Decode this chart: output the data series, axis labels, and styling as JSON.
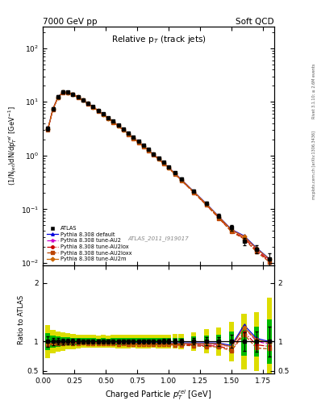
{
  "title_left": "7000 GeV pp",
  "title_right": "Soft QCD",
  "inner_title": "Relative p$_T$ (track jets)",
  "xlabel": "Charged Particle $p_T^{rel}$ [GeV]",
  "ylabel_main": "(1/N$_{jet}$)dN/dp$_T^{rel}$ [GeV$^{-1}$]",
  "ylabel_ratio": "Ratio to ATLAS",
  "right_label_top": "Rivet 3.1.10; ≥ 2.6M events",
  "right_label_bot": "mcplots.cern.ch [arXiv:1306.3436]",
  "watermark": "ATLAS_2011_I919017",
  "atlas_x": [
    0.04,
    0.08,
    0.12,
    0.16,
    0.2,
    0.24,
    0.28,
    0.32,
    0.36,
    0.4,
    0.44,
    0.48,
    0.52,
    0.56,
    0.6,
    0.64,
    0.68,
    0.72,
    0.76,
    0.8,
    0.84,
    0.88,
    0.92,
    0.96,
    1.0,
    1.05,
    1.1,
    1.2,
    1.3,
    1.4,
    1.5,
    1.6,
    1.7,
    1.8
  ],
  "atlas_y": [
    3.2,
    7.5,
    12.5,
    15.5,
    15.2,
    14.0,
    12.5,
    11.0,
    9.5,
    8.2,
    7.0,
    6.0,
    5.1,
    4.35,
    3.7,
    3.1,
    2.6,
    2.2,
    1.85,
    1.55,
    1.3,
    1.08,
    0.9,
    0.75,
    0.62,
    0.48,
    0.37,
    0.22,
    0.13,
    0.075,
    0.045,
    0.025,
    0.018,
    0.012
  ],
  "atlas_yerr": [
    0.3,
    0.5,
    0.7,
    0.8,
    0.7,
    0.6,
    0.5,
    0.4,
    0.35,
    0.3,
    0.25,
    0.22,
    0.18,
    0.16,
    0.14,
    0.12,
    0.1,
    0.08,
    0.07,
    0.06,
    0.05,
    0.04,
    0.035,
    0.03,
    0.025,
    0.02,
    0.016,
    0.012,
    0.009,
    0.006,
    0.005,
    0.004,
    0.003,
    0.003
  ],
  "pythia_default_y": [
    3.1,
    7.3,
    12.2,
    15.2,
    15.0,
    13.8,
    12.3,
    10.8,
    9.3,
    8.05,
    6.88,
    5.88,
    5.0,
    4.27,
    3.62,
    3.04,
    2.55,
    2.15,
    1.81,
    1.52,
    1.27,
    1.06,
    0.88,
    0.73,
    0.605,
    0.468,
    0.361,
    0.215,
    0.127,
    0.073,
    0.042,
    0.032,
    0.019,
    0.012
  ],
  "pythia_au2_y": [
    3.05,
    7.25,
    12.1,
    15.1,
    14.9,
    13.7,
    12.2,
    10.75,
    9.25,
    8.0,
    6.83,
    5.83,
    4.95,
    4.22,
    3.58,
    3.0,
    2.51,
    2.11,
    1.78,
    1.49,
    1.25,
    1.04,
    0.865,
    0.72,
    0.595,
    0.46,
    0.354,
    0.21,
    0.124,
    0.071,
    0.041,
    0.031,
    0.018,
    0.0115
  ],
  "pythia_au2lox_y": [
    3.05,
    7.25,
    12.1,
    15.1,
    14.9,
    13.7,
    12.2,
    10.75,
    9.25,
    8.0,
    6.83,
    5.83,
    4.95,
    4.22,
    3.58,
    3.0,
    2.51,
    2.11,
    1.78,
    1.49,
    1.25,
    1.04,
    0.862,
    0.715,
    0.59,
    0.455,
    0.35,
    0.207,
    0.121,
    0.069,
    0.039,
    0.029,
    0.017,
    0.011
  ],
  "pythia_au2loxx_y": [
    3.02,
    7.2,
    12.0,
    15.0,
    14.8,
    13.6,
    12.1,
    10.7,
    9.2,
    7.95,
    6.78,
    5.78,
    4.9,
    4.18,
    3.54,
    2.97,
    2.48,
    2.09,
    1.76,
    1.47,
    1.23,
    1.03,
    0.855,
    0.71,
    0.585,
    0.451,
    0.346,
    0.204,
    0.119,
    0.068,
    0.038,
    0.028,
    0.016,
    0.0105
  ],
  "pythia_au2m_y": [
    3.08,
    7.28,
    12.15,
    15.15,
    14.95,
    13.75,
    12.25,
    10.78,
    9.28,
    8.02,
    6.85,
    5.85,
    4.97,
    4.24,
    3.6,
    3.02,
    2.53,
    2.13,
    1.79,
    1.5,
    1.26,
    1.05,
    0.867,
    0.722,
    0.597,
    0.462,
    0.356,
    0.212,
    0.125,
    0.072,
    0.041,
    0.031,
    0.0185,
    0.0118
  ],
  "ratio_default": [
    0.97,
    0.973,
    0.977,
    0.981,
    0.987,
    0.986,
    0.985,
    0.982,
    0.979,
    0.981,
    0.983,
    0.98,
    0.98,
    0.982,
    0.979,
    0.981,
    0.982,
    0.977,
    0.978,
    0.981,
    0.977,
    0.981,
    0.978,
    0.973,
    0.976,
    0.975,
    0.976,
    0.977,
    0.977,
    0.973,
    0.933,
    1.28,
    1.055,
    1.0
  ],
  "ratio_au2": [
    0.953,
    0.967,
    0.968,
    0.974,
    0.98,
    0.979,
    0.978,
    0.977,
    0.974,
    0.976,
    0.976,
    0.972,
    0.971,
    0.97,
    0.968,
    0.968,
    0.965,
    0.959,
    0.962,
    0.961,
    0.962,
    0.963,
    0.961,
    0.96,
    0.96,
    0.958,
    0.957,
    0.955,
    0.954,
    0.947,
    0.911,
    1.24,
    1.0,
    0.958
  ],
  "ratio_au2lox": [
    0.953,
    0.967,
    0.968,
    0.974,
    0.98,
    0.979,
    0.978,
    0.977,
    0.974,
    0.976,
    0.976,
    0.972,
    0.971,
    0.97,
    0.968,
    0.968,
    0.965,
    0.959,
    0.962,
    0.961,
    0.962,
    0.963,
    0.958,
    0.953,
    0.952,
    0.948,
    0.946,
    0.941,
    0.931,
    0.92,
    0.867,
    1.16,
    0.944,
    0.917
  ],
  "ratio_au2loxx": [
    0.944,
    0.96,
    0.96,
    0.968,
    0.974,
    0.971,
    0.969,
    0.973,
    0.969,
    0.97,
    0.969,
    0.963,
    0.961,
    0.961,
    0.957,
    0.958,
    0.954,
    0.95,
    0.951,
    0.948,
    0.946,
    0.954,
    0.95,
    0.947,
    0.944,
    0.94,
    0.935,
    0.927,
    0.915,
    0.907,
    0.844,
    1.12,
    0.889,
    0.875
  ],
  "ratio_au2m": [
    0.963,
    0.971,
    0.972,
    0.977,
    0.983,
    0.982,
    0.981,
    0.98,
    0.977,
    0.978,
    0.979,
    0.975,
    0.974,
    0.974,
    0.973,
    0.974,
    0.973,
    0.968,
    0.968,
    0.968,
    0.969,
    0.972,
    0.963,
    0.963,
    0.963,
    0.963,
    0.962,
    0.964,
    0.962,
    0.96,
    0.911,
    1.24,
    1.028,
    0.983
  ],
  "color_default": "#0000dd",
  "color_au2": "#cc00cc",
  "color_au2lox": "#cc0000",
  "color_au2loxx": "#bb4400",
  "color_au2m": "#cc6600",
  "color_atlas": "#000000",
  "color_green": "#00bb00",
  "color_yellow": "#dddd00",
  "xlim": [
    0.0,
    1.84
  ],
  "ylim_main": [
    0.009,
    250
  ],
  "ylim_ratio": [
    0.45,
    2.3
  ],
  "main_yticks": [
    0.01,
    0.1,
    1,
    10,
    100
  ],
  "ratio_yticks": [
    0.5,
    1.0,
    2.0
  ]
}
